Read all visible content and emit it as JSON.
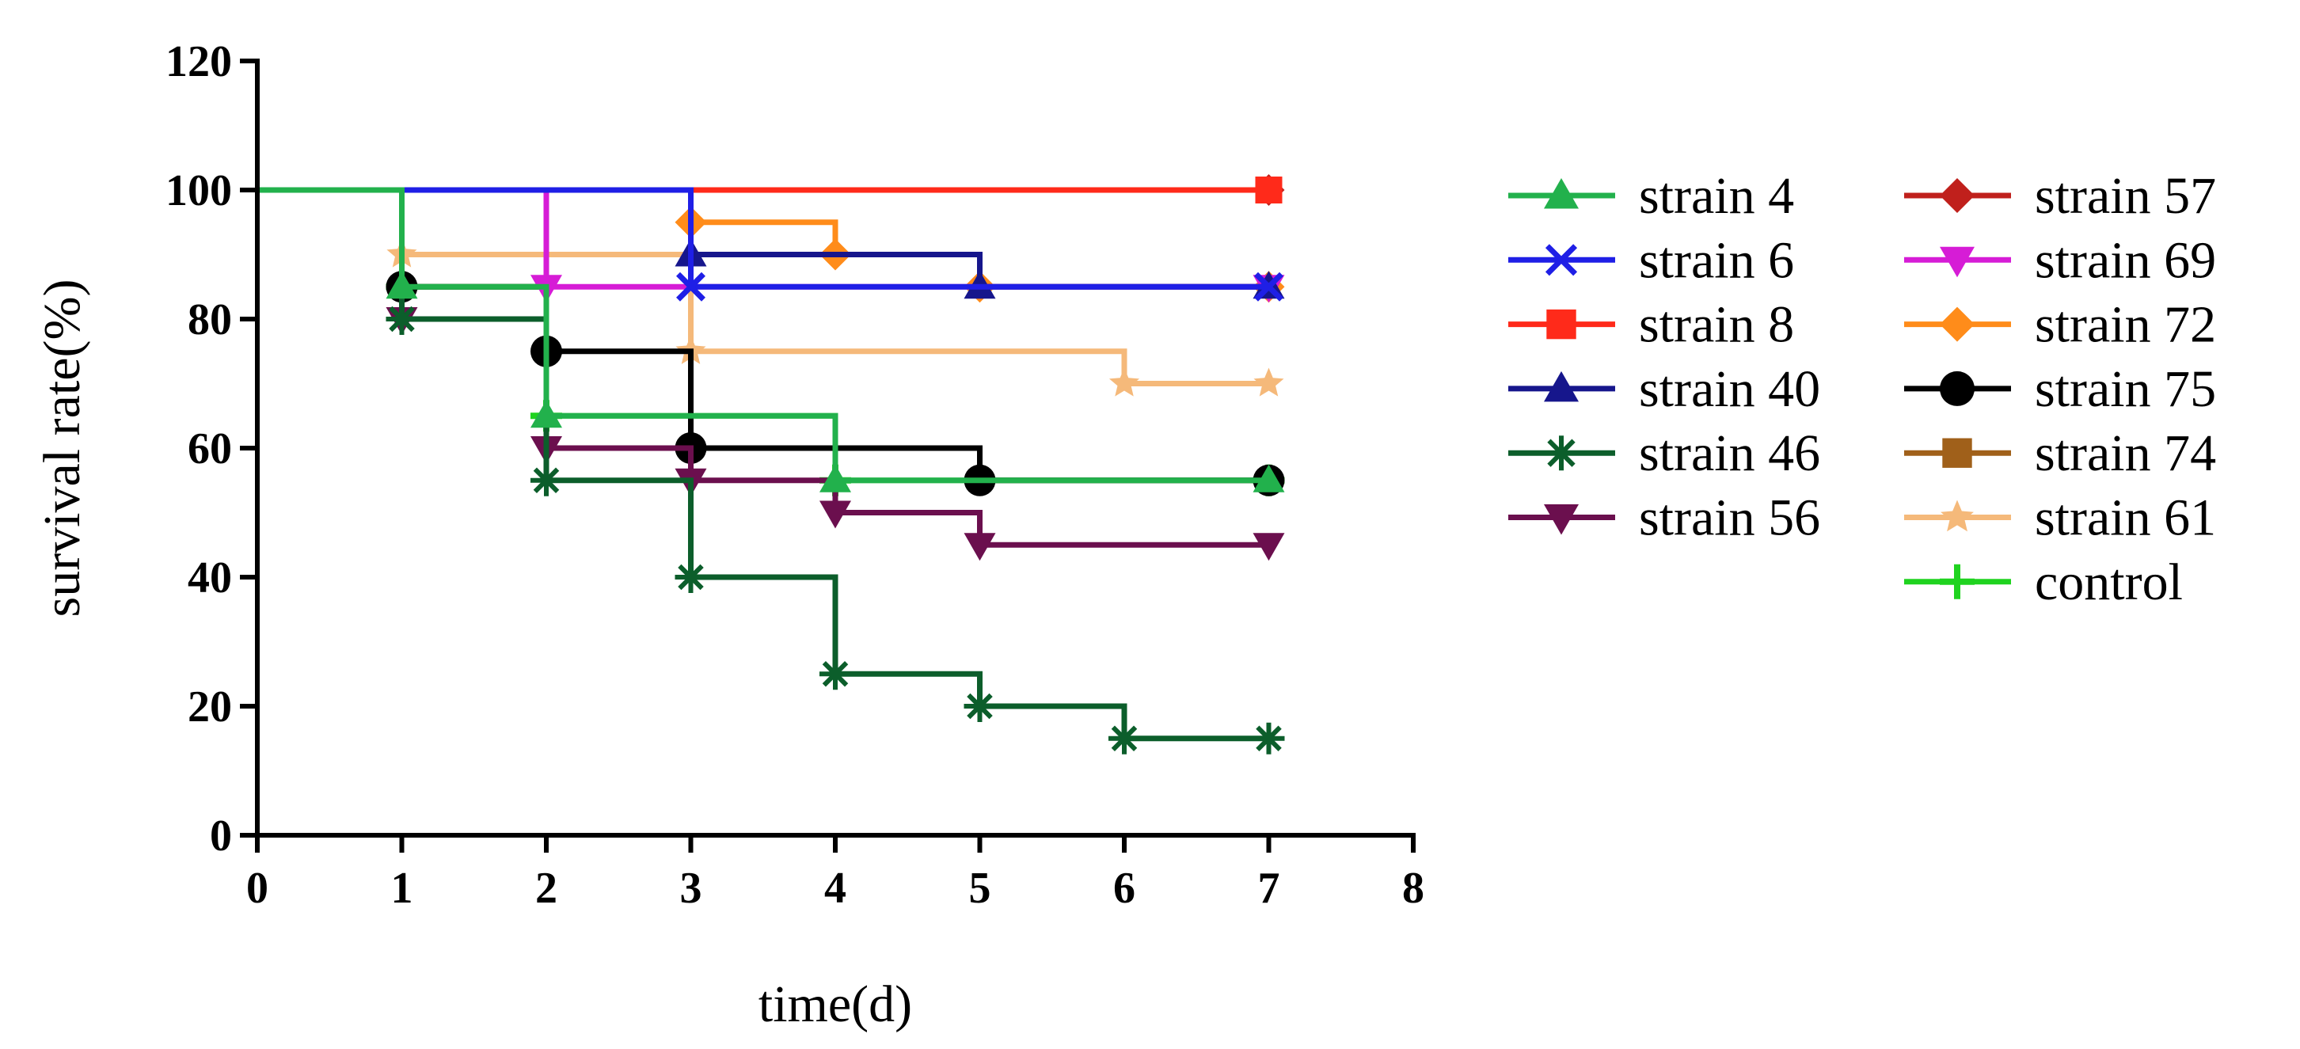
{
  "chart_data": {
    "type": "line",
    "subtype": "step",
    "title": "",
    "xlabel": "time(d)",
    "ylabel": "survival rate(%)",
    "xlim": [
      0,
      8
    ],
    "ylim": [
      0,
      120
    ],
    "xticks": [
      0,
      1,
      2,
      3,
      4,
      5,
      6,
      7,
      8
    ],
    "yticks": [
      0,
      20,
      40,
      60,
      80,
      100,
      120
    ],
    "grid": false,
    "legend_position": "right",
    "series": [
      {
        "name": "strain 4",
        "color": "#22b14c",
        "marker": "triangle-up",
        "x": [
          0,
          1,
          2,
          4,
          7
        ],
        "y": [
          100,
          85,
          65,
          55,
          55
        ]
      },
      {
        "name": "strain 6",
        "color": "#1f1fe6",
        "marker": "x",
        "x": [
          0,
          3,
          7
        ],
        "y": [
          100,
          85,
          85
        ]
      },
      {
        "name": "strain 8",
        "color": "#ff2a1a",
        "marker": "square",
        "x": [
          0,
          7
        ],
        "y": [
          100,
          100
        ]
      },
      {
        "name": "strain 40",
        "color": "#16168c",
        "marker": "triangle-up",
        "x": [
          0,
          3,
          5,
          7
        ],
        "y": [
          100,
          90,
          85,
          85
        ]
      },
      {
        "name": "strain 46",
        "color": "#0c5e2b",
        "marker": "asterisk",
        "x": [
          0,
          1,
          2,
          3,
          4,
          5,
          6,
          7
        ],
        "y": [
          100,
          80,
          55,
          40,
          25,
          20,
          15,
          15
        ]
      },
      {
        "name": "strain 56",
        "color": "#6b0f4e",
        "marker": "triangle-down",
        "x": [
          0,
          1,
          2,
          3,
          4,
          5,
          7
        ],
        "y": [
          100,
          80,
          60,
          55,
          50,
          45,
          45
        ]
      },
      {
        "name": "strain 57",
        "color": "#c0201c",
        "marker": "diamond",
        "x": [
          0,
          7
        ],
        "y": [
          100,
          100
        ]
      },
      {
        "name": "strain 69",
        "color": "#d61cd6",
        "marker": "triangle-down",
        "x": [
          0,
          2,
          7
        ],
        "y": [
          100,
          85,
          85
        ]
      },
      {
        "name": "strain 72",
        "color": "#ff8c1a",
        "marker": "diamond",
        "x": [
          0,
          3,
          4,
          5,
          7
        ],
        "y": [
          100,
          95,
          90,
          85,
          85
        ]
      },
      {
        "name": "strain 75",
        "color": "#000000",
        "marker": "circle",
        "x": [
          0,
          1,
          2,
          3,
          5,
          7
        ],
        "y": [
          100,
          85,
          75,
          60,
          55,
          55
        ]
      },
      {
        "name": "strain 74",
        "color": "#a0601a",
        "marker": "square",
        "x": [
          0,
          7
        ],
        "y": [
          100,
          100
        ]
      },
      {
        "name": "strain 61",
        "color": "#f5b97a",
        "marker": "star",
        "x": [
          0,
          1,
          3,
          6,
          7
        ],
        "y": [
          100,
          90,
          75,
          70,
          70
        ]
      },
      {
        "name": "control",
        "color": "#1fd31f",
        "marker": "plus",
        "x": [
          0,
          1,
          2,
          4,
          7
        ],
        "y": [
          100,
          85,
          65,
          55,
          55
        ]
      }
    ]
  }
}
